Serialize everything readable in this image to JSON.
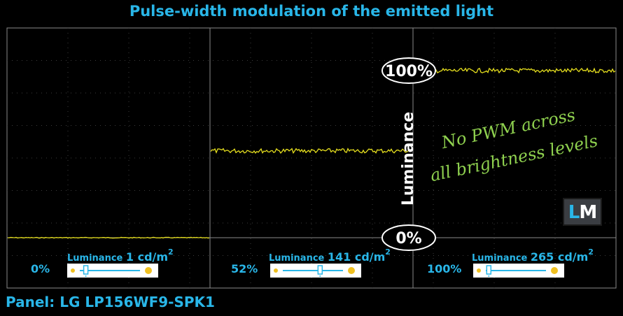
{
  "title": "Pulse-width modulation of the emitted light",
  "panel_label": "Panel: LG LP156WF9-SPK1",
  "logo": {
    "letter1": "L",
    "letter2": "M"
  },
  "annotation": {
    "line1": "No PWM across",
    "line2": "all brightness levels"
  },
  "colors": {
    "accent": "#29b6e8",
    "signal": "#e6df1e",
    "annotation": "#8fd14f",
    "grid": "#8a8a8a"
  },
  "chart_data": {
    "type": "line",
    "title": "Pulse-width modulation of the emitted light",
    "ylabel": "Luminance",
    "y_markers": [
      "100%",
      "0%"
    ],
    "ylim": [
      0,
      100
    ],
    "grid": true,
    "segments": [
      {
        "brightness_setting": "0%",
        "luminance_label": "Luminance",
        "luminance_value": "1 cd/m",
        "luminance_sup": "2",
        "level": 0,
        "slider_position": 0.1
      },
      {
        "brightness_setting": "52%",
        "luminance_label": "Luminance",
        "luminance_value": "141 cd/m",
        "luminance_sup": "2",
        "level": 52,
        "slider_position": 0.62
      },
      {
        "brightness_setting": "100%",
        "luminance_label": "Luminance",
        "luminance_value": "265 cd/m",
        "luminance_sup": "2",
        "level": 100,
        "slider_position": 0.05
      }
    ]
  }
}
